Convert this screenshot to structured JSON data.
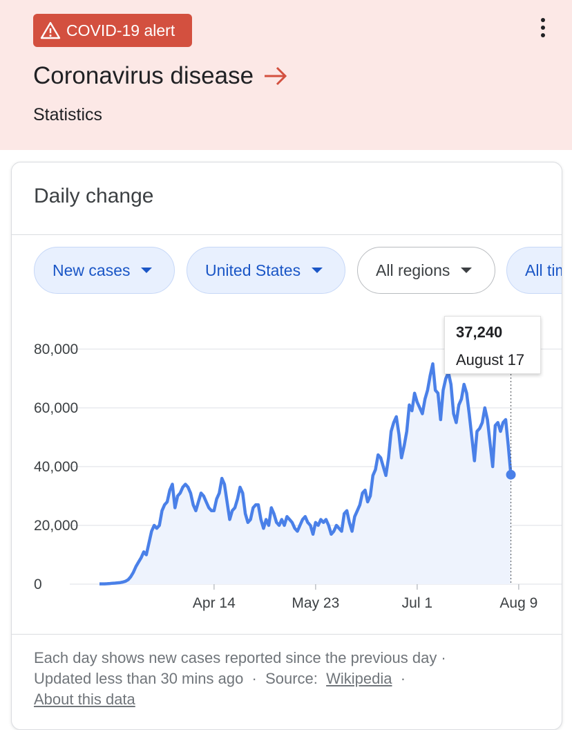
{
  "alert": {
    "label": "COVID-19 alert",
    "color": "#d3503f"
  },
  "header": {
    "title": "Coronavirus disease",
    "subtitle": "Statistics",
    "background": "#fce8e6"
  },
  "card": {
    "title": "Daily change",
    "chips": [
      {
        "label": "New cases",
        "selected": true
      },
      {
        "label": "United States",
        "selected": true
      },
      {
        "label": "All regions",
        "selected": false
      },
      {
        "label": "All time",
        "selected": true
      }
    ]
  },
  "tooltip": {
    "value": "37,240",
    "date": "August 17"
  },
  "chart_data": {
    "type": "area",
    "title": "",
    "xlabel": "",
    "ylabel": "",
    "ylim": [
      0,
      80000
    ],
    "y_ticks": [
      "80,000",
      "60,000",
      "40,000",
      "20,000",
      "0"
    ],
    "x_ticks": [
      "Apr 14",
      "May 23",
      "Jul 1",
      "Aug 9"
    ],
    "x_range": [
      "2020-03-01",
      "2020-08-17"
    ],
    "line_color": "#4a80e8",
    "fill_color": "#eef3fd",
    "grid": true,
    "series": [
      {
        "name": "New cases",
        "start_date": "2020-03-01",
        "values": [
          100,
          100,
          100,
          150,
          200,
          300,
          350,
          450,
          550,
          700,
          1000,
          1500,
          2500,
          4000,
          6000,
          7500,
          9000,
          11000,
          10000,
          14000,
          18000,
          20000,
          19000,
          20000,
          25000,
          27000,
          28000,
          32000,
          34000,
          26000,
          30000,
          31000,
          33000,
          34000,
          33000,
          31000,
          27000,
          25000,
          28000,
          31000,
          30000,
          28000,
          26000,
          25000,
          25000,
          29000,
          31000,
          36000,
          34000,
          28000,
          22000,
          25000,
          26000,
          29000,
          33000,
          31000,
          24000,
          21000,
          22000,
          26000,
          27000,
          27000,
          22000,
          19000,
          22000,
          20000,
          26000,
          24000,
          21000,
          20000,
          22000,
          20000,
          23000,
          22000,
          21000,
          19000,
          18000,
          20000,
          22000,
          23000,
          21000,
          20000,
          17000,
          21000,
          20000,
          22000,
          21000,
          22000,
          20000,
          17000,
          18000,
          20000,
          19000,
          18000,
          24000,
          25000,
          21000,
          18000,
          23000,
          25000,
          27000,
          31000,
          32000,
          28000,
          30000,
          37000,
          39000,
          44000,
          43000,
          40000,
          37000,
          43000,
          52000,
          55000,
          57000,
          51000,
          43000,
          47000,
          52000,
          61000,
          59000,
          65000,
          62000,
          60000,
          58000,
          63000,
          66000,
          71000,
          75000,
          66000,
          65000,
          56000,
          66000,
          70000,
          72000,
          68000,
          58000,
          55000,
          61000,
          63000,
          68000,
          65000,
          58000,
          50000,
          42000,
          52000,
          53000,
          55000,
          60000,
          56000,
          48000,
          40000,
          54000,
          55000,
          52000,
          55000,
          56000,
          47000,
          37240
        ]
      }
    ]
  }
}
